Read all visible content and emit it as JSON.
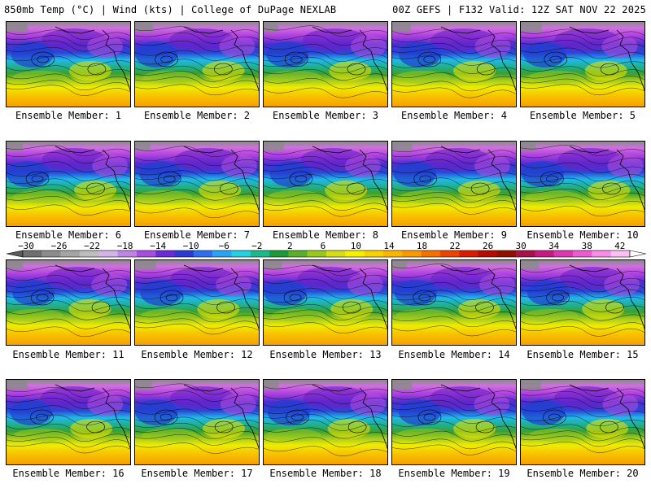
{
  "header": {
    "left": "850mb Temp (°C) | Wind (kts) | College of DuPage NEXLAB",
    "right": "00Z GEFS | F132 Valid: 12Z SAT NOV 22 2025"
  },
  "colorbar": {
    "tick_labels": [
      "-30",
      "-26",
      "-22",
      "-18",
      "-14",
      "-10",
      "-6",
      "-2",
      "2",
      "6",
      "10",
      "14",
      "18",
      "22",
      "26",
      "30",
      "34",
      "38",
      "42"
    ],
    "colors": [
      "#707070",
      "#8c8c8c",
      "#a5a5a5",
      "#bdbdbd",
      "#d2b4e8",
      "#c084e6",
      "#a64ee0",
      "#6a2bd6",
      "#2c3ad2",
      "#2e6ff0",
      "#2aa4f2",
      "#26d0e0",
      "#1cb98a",
      "#1e9a3a",
      "#58b02a",
      "#98c81e",
      "#d8dc14",
      "#f4f000",
      "#f8d200",
      "#fbb400",
      "#f89a00",
      "#f47000",
      "#ec4400",
      "#d81c00",
      "#b40c00",
      "#901000",
      "#a81048",
      "#c41a82",
      "#dc36b0",
      "#ee5ad2",
      "#f88ce8",
      "#fcc0f4"
    ]
  },
  "members": [
    {
      "label": "Ensemble Member: 1"
    },
    {
      "label": "Ensemble Member: 2"
    },
    {
      "label": "Ensemble Member: 3"
    },
    {
      "label": "Ensemble Member: 4"
    },
    {
      "label": "Ensemble Member: 5"
    },
    {
      "label": "Ensemble Member: 6"
    },
    {
      "label": "Ensemble Member: 7"
    },
    {
      "label": "Ensemble Member: 8"
    },
    {
      "label": "Ensemble Member: 9"
    },
    {
      "label": "Ensemble Member: 10"
    },
    {
      "label": "Ensemble Member: 11"
    },
    {
      "label": "Ensemble Member: 12"
    },
    {
      "label": "Ensemble Member: 13"
    },
    {
      "label": "Ensemble Member: 14"
    },
    {
      "label": "Ensemble Member: 15"
    },
    {
      "label": "Ensemble Member: 16"
    },
    {
      "label": "Ensemble Member: 17"
    },
    {
      "label": "Ensemble Member: 18"
    },
    {
      "label": "Ensemble Member: 19"
    },
    {
      "label": "Ensemble Member: 20"
    }
  ]
}
